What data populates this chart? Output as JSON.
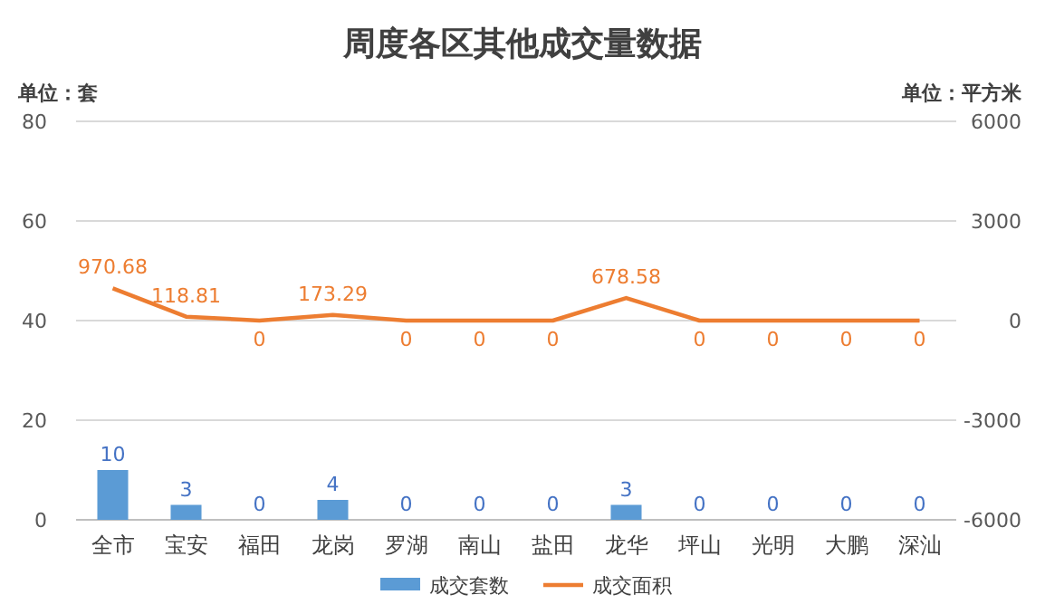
{
  "chart_data": {
    "type": "bar",
    "title": "周度各区其他成交量数据",
    "ylabel": "单位：套",
    "y2label": "单位：平方米",
    "categories": [
      "全市",
      "宝安",
      "福田",
      "龙岗",
      "罗湖",
      "南山",
      "盐田",
      "龙华",
      "坪山",
      "光明",
      "大鹏",
      "深汕"
    ],
    "series": [
      {
        "name": "成交套数",
        "color": "#5b9bd5",
        "values": [
          10,
          3,
          0,
          4,
          0,
          0,
          0,
          3,
          0,
          0,
          0,
          0
        ]
      },
      {
        "name": "成交面积",
        "type": "line",
        "axis": "y2",
        "color": "#ed7d31",
        "values": [
          970.68,
          118.81,
          0,
          173.29,
          0,
          0,
          0,
          678.58,
          0,
          0,
          0,
          0
        ]
      }
    ],
    "ylim": [
      0,
      80
    ],
    "yticks": [
      0,
      20,
      40,
      60,
      80
    ],
    "y2lim": [
      -6000,
      6000
    ],
    "y2ticks": [
      -6000,
      -3000,
      0,
      3000,
      6000
    ],
    "grid": "y",
    "legend": "bottom",
    "data_labels": true,
    "marker": "none"
  }
}
